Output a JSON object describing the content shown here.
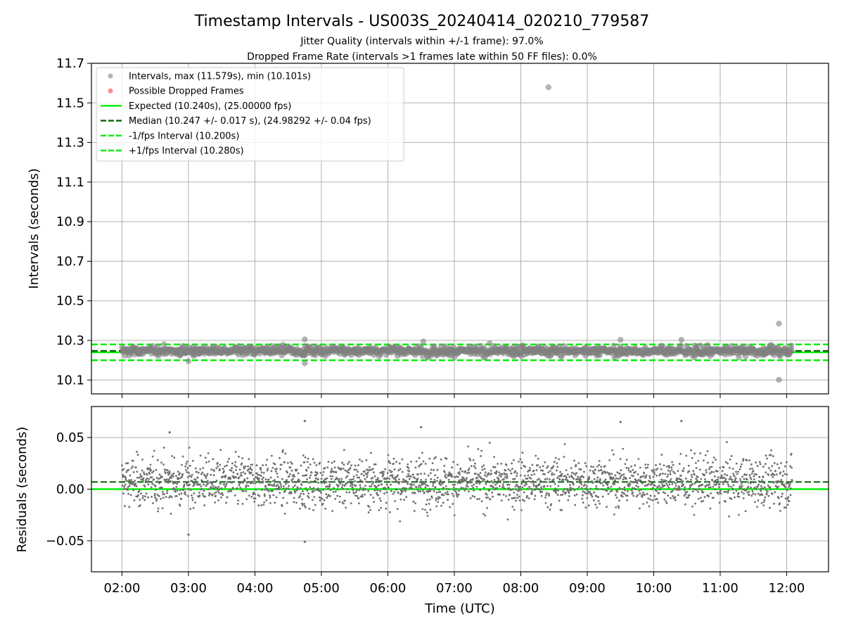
{
  "colors": {
    "points": "#808080",
    "dropped": "#ff4040",
    "expected": "#00ee00",
    "median": "#006400",
    "fps_band": "#00ee00",
    "grid": "#b0b0b0"
  },
  "chart_data": [
    {
      "type": "scatter",
      "title": "Timestamp Intervals - US003S_20240414_020210_779587",
      "subtitle_1": "Jitter Quality (intervals within +/-1 frame): 97.0%",
      "subtitle_2": "Dropped Frame Rate (intervals >1 frames late within 50 FF files): 0.0%",
      "xlabel": "",
      "ylabel": "Intervals (seconds)",
      "xlim_hours": [
        1.54,
        12.63
      ],
      "ylim": [
        10.03,
        11.7
      ],
      "yticks": [
        "10.1",
        "10.3",
        "10.5",
        "10.7",
        "10.9",
        "11.1",
        "11.3",
        "11.5",
        "11.7"
      ],
      "ytick_values": [
        10.1,
        10.3,
        10.5,
        10.7,
        10.9,
        11.1,
        11.3,
        11.5,
        11.7
      ],
      "grid": true,
      "legend_position": "top-left",
      "legend": [
        {
          "label": "Intervals, max (11.579s), min (10.101s)",
          "kind": "point",
          "color": "#808080"
        },
        {
          "label": "Possible Dropped Frames",
          "kind": "point",
          "color": "#ff4040"
        },
        {
          "label": "Expected (10.240s), (25.00000 fps)",
          "kind": "solid",
          "color": "#00ee00"
        },
        {
          "label": "Median (10.247 +/- 0.017 s), (24.98292 +/- 0.04 fps)",
          "kind": "dashed",
          "color": "#006400"
        },
        {
          "label": "-1/fps Interval (10.200s)",
          "kind": "dashed",
          "color": "#00ee00"
        },
        {
          "label": "+1/fps Interval (10.280s)",
          "kind": "dashed",
          "color": "#00ee00"
        }
      ],
      "data_time_range": [
        "02:00",
        "12:05"
      ],
      "interval_stats": {
        "max": 11.579,
        "min": 10.101,
        "median": 10.247,
        "median_spread": 0.017
      },
      "hlines": {
        "expected": 10.24,
        "median": 10.247,
        "minus_fps": 10.2,
        "plus_fps": 10.28
      },
      "outliers": [
        {
          "time": "08:25",
          "value": 11.579
        },
        {
          "time": "11:53",
          "value": 10.385
        },
        {
          "time": "11:53",
          "value": 10.101
        },
        {
          "time": "04:45",
          "value": 10.305
        },
        {
          "time": "04:45",
          "value": 10.185
        },
        {
          "time": "03:00",
          "value": 10.195
        },
        {
          "time": "06:32",
          "value": 10.295
        },
        {
          "time": "09:30",
          "value": 10.303
        },
        {
          "time": "10:25",
          "value": 10.303
        }
      ]
    },
    {
      "type": "scatter",
      "xlabel": "Time (UTC)",
      "ylabel": "Residuals (seconds)",
      "ylim": [
        -0.08,
        0.08
      ],
      "yticks": [
        "−0.05",
        "0.00",
        "0.05"
      ],
      "ytick_values": [
        -0.05,
        0.0,
        0.05
      ],
      "xticks": [
        "02:00",
        "03:00",
        "04:00",
        "05:00",
        "06:00",
        "07:00",
        "08:00",
        "09:00",
        "10:00",
        "11:00",
        "12:00"
      ],
      "xtick_hours": [
        2,
        3,
        4,
        5,
        6,
        7,
        8,
        9,
        10,
        11,
        12
      ],
      "grid": true,
      "residual_spread": {
        "min": -0.051,
        "max": 0.066,
        "typical_low": -0.03,
        "typical_high": 0.04
      },
      "hlines": {
        "zero": 0.0,
        "median_offset": 0.007
      },
      "outliers": [
        {
          "time": "04:45",
          "value": 0.066
        },
        {
          "time": "04:45",
          "value": -0.051
        },
        {
          "time": "02:43",
          "value": 0.055
        },
        {
          "time": "06:30",
          "value": 0.06
        },
        {
          "time": "10:25",
          "value": 0.066
        },
        {
          "time": "09:30",
          "value": 0.065
        },
        {
          "time": "03:00",
          "value": -0.044
        }
      ]
    }
  ]
}
